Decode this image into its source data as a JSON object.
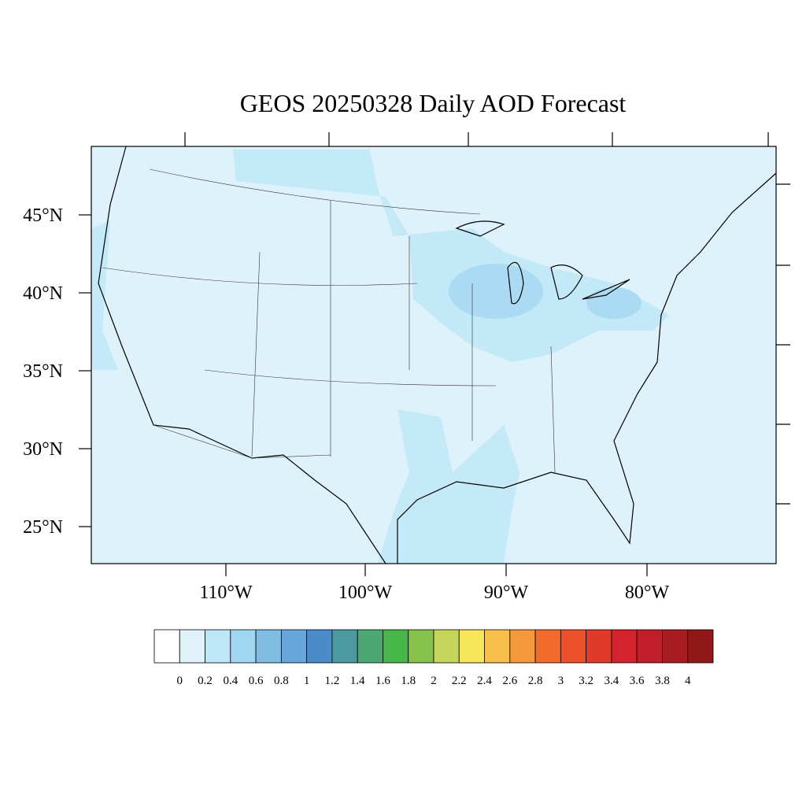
{
  "title": "GEOS 20250328 Daily AOD Forecast",
  "lat_labels": [
    "45°N",
    "40°N",
    "35°N",
    "30°N",
    "25°N"
  ],
  "lon_labels": [
    "110°W",
    "100°W",
    "90°W",
    "80°W"
  ],
  "colorbar": {
    "labels": [
      "0",
      "0.2",
      "0.4",
      "0.6",
      "0.8",
      "1",
      "1.2",
      "1.4",
      "1.6",
      "1.8",
      "2",
      "2.2",
      "2.4",
      "2.6",
      "2.8",
      "3",
      "3.2",
      "3.4",
      "3.6",
      "3.8",
      "4"
    ],
    "colors": [
      "#ffffff",
      "#e0f3fb",
      "#bde6f7",
      "#9fd6f0",
      "#82bde4",
      "#66a6d9",
      "#4a8cc8",
      "#4b9aa0",
      "#4aa870",
      "#48b54a",
      "#86c24c",
      "#c4d65a",
      "#f5e65a",
      "#f7c04a",
      "#f59a3c",
      "#f26b2c",
      "#eb522c",
      "#e23a2a",
      "#d4232c",
      "#c01e2a",
      "#a81c24",
      "#901818"
    ]
  }
}
